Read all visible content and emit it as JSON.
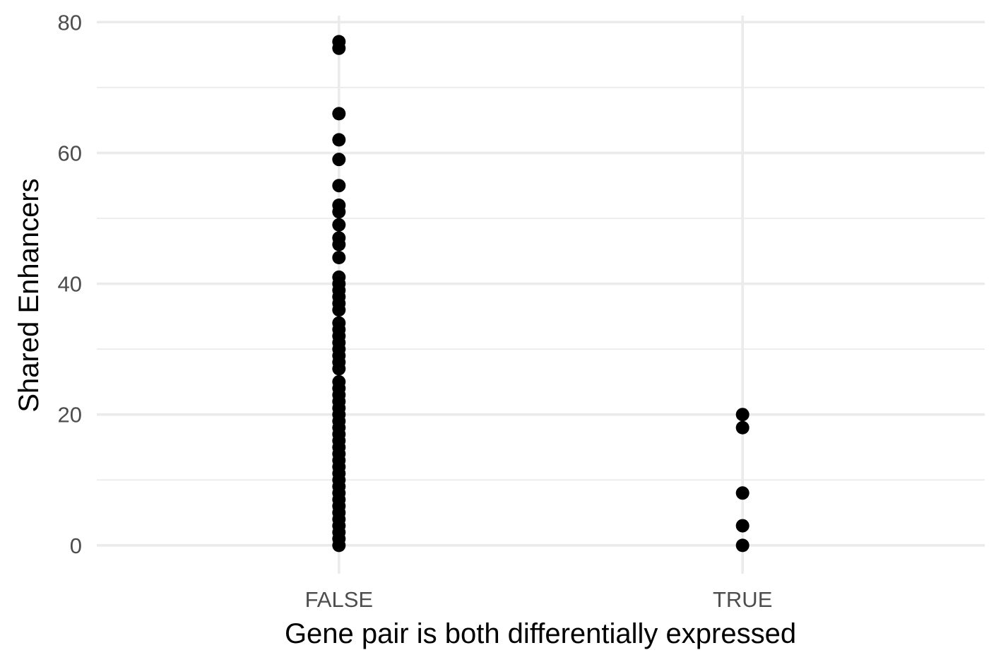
{
  "chart_data": {
    "type": "scatter",
    "xlabel": "Gene pair is both differentially expressed",
    "ylabel": "Shared Enhancers",
    "categories": [
      "FALSE",
      "TRUE"
    ],
    "ylim": [
      -2.5,
      81
    ],
    "y_ticks": [
      0,
      20,
      40,
      60,
      80
    ],
    "y_tick_labels": [
      "0",
      "20",
      "40",
      "60",
      "80"
    ],
    "grid": true,
    "legend": "none",
    "point_color": "#000000",
    "series": [
      {
        "category": "FALSE",
        "values": [
          0,
          1,
          2,
          3,
          4,
          5,
          6,
          7,
          8,
          9,
          10,
          11,
          12,
          13,
          14,
          15,
          16,
          17,
          18,
          19,
          20,
          21,
          22,
          23,
          24,
          25,
          27,
          28,
          29,
          30,
          31,
          32,
          33,
          34,
          36,
          37,
          38,
          39,
          40,
          41,
          44,
          46,
          47,
          49,
          51,
          52,
          55,
          59,
          62,
          66,
          76,
          77
        ]
      },
      {
        "category": "TRUE",
        "values": [
          0,
          3,
          8,
          18,
          20
        ]
      }
    ]
  }
}
